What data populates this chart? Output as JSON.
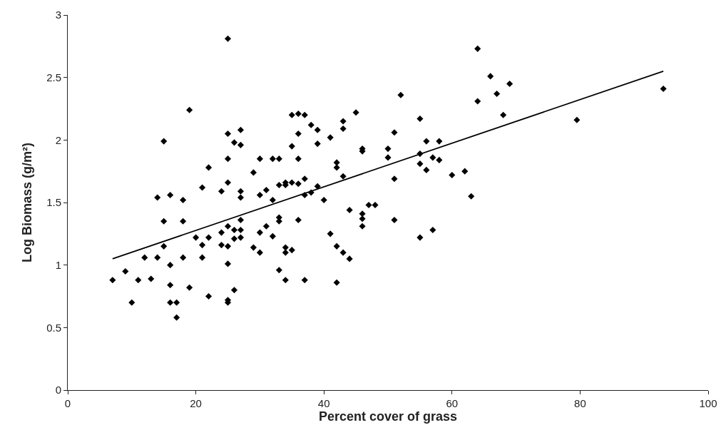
{
  "chart_data": {
    "type": "scatter",
    "xlabel": "Percent cover of grass",
    "ylabel": "Log Biomass (g/m²)",
    "xlim": [
      0,
      100
    ],
    "xticks": [
      0,
      20,
      40,
      60,
      80,
      100
    ],
    "ylim": [
      0,
      3
    ],
    "yticks": [
      0,
      0.5,
      1,
      1.5,
      2,
      2.5,
      3
    ],
    "grid": false,
    "series": [
      {
        "marker": "diamond",
        "color": "#000000",
        "x": [
          7,
          9,
          10,
          11,
          12,
          13,
          14,
          14,
          15,
          15,
          15,
          16,
          16,
          16,
          16,
          17,
          17,
          18,
          18,
          18,
          19,
          19,
          20,
          21,
          21,
          21,
          22,
          22,
          22,
          24,
          24,
          24,
          25,
          25,
          25,
          25,
          25,
          25,
          25,
          25,
          25,
          26,
          26,
          26,
          26,
          27,
          27,
          27,
          27,
          27,
          27,
          27,
          29,
          29,
          30,
          30,
          30,
          30,
          31,
          31,
          32,
          32,
          32,
          33,
          33,
          33,
          33,
          33,
          34,
          34,
          34,
          34,
          34,
          35,
          35,
          35,
          35,
          36,
          36,
          36,
          36,
          36,
          37,
          37,
          37,
          37,
          38,
          38,
          39,
          39,
          39,
          40,
          41,
          41,
          42,
          42,
          42,
          42,
          43,
          43,
          43,
          43,
          44,
          44,
          45,
          46,
          46,
          46,
          46,
          46,
          47,
          48,
          50,
          50,
          51,
          51,
          51,
          52,
          55,
          55,
          55,
          55,
          56,
          56,
          57,
          57,
          58,
          58,
          60,
          62,
          63,
          64,
          64,
          66,
          67,
          68,
          69,
          79.5,
          93
        ],
        "values": [
          0.88,
          0.95,
          0.7,
          0.88,
          1.06,
          0.89,
          1.06,
          1.54,
          1.35,
          1.99,
          1.15,
          1.56,
          1.0,
          0.84,
          0.7,
          0.7,
          0.58,
          1.06,
          1.35,
          1.52,
          2.24,
          0.82,
          1.22,
          1.06,
          1.62,
          1.16,
          1.78,
          0.75,
          1.22,
          1.26,
          1.59,
          1.16,
          2.81,
          2.05,
          1.85,
          1.66,
          1.31,
          1.15,
          1.01,
          0.72,
          0.7,
          0.8,
          1.28,
          1.21,
          1.98,
          1.96,
          2.08,
          1.59,
          1.54,
          1.28,
          1.22,
          1.36,
          1.74,
          1.14,
          1.85,
          1.56,
          1.26,
          1.1,
          1.6,
          1.31,
          1.85,
          1.52,
          1.23,
          1.85,
          1.64,
          1.38,
          1.35,
          0.96,
          1.64,
          1.66,
          1.14,
          1.1,
          0.88,
          2.2,
          1.95,
          1.66,
          1.12,
          2.21,
          2.05,
          1.85,
          1.65,
          1.36,
          2.2,
          1.69,
          1.56,
          0.88,
          1.58,
          2.12,
          2.08,
          1.63,
          1.97,
          1.52,
          2.02,
          1.25,
          1.82,
          1.78,
          1.15,
          0.86,
          2.15,
          2.09,
          1.71,
          1.1,
          1.05,
          1.44,
          2.22,
          1.93,
          1.91,
          1.41,
          1.37,
          1.31,
          1.48,
          1.48,
          1.93,
          1.86,
          2.06,
          1.69,
          1.36,
          2.36,
          2.17,
          1.89,
          1.81,
          1.22,
          1.99,
          1.76,
          1.86,
          1.28,
          1.99,
          1.84,
          1.72,
          1.75,
          1.55,
          2.73,
          2.31,
          2.51,
          2.37,
          2.2,
          2.45,
          2.16,
          2.41
        ]
      },
      {
        "type": "line",
        "color": "#000000",
        "x": [
          7,
          93
        ],
        "values": [
          1.05,
          2.55
        ],
        "line_style": "solid"
      }
    ]
  }
}
